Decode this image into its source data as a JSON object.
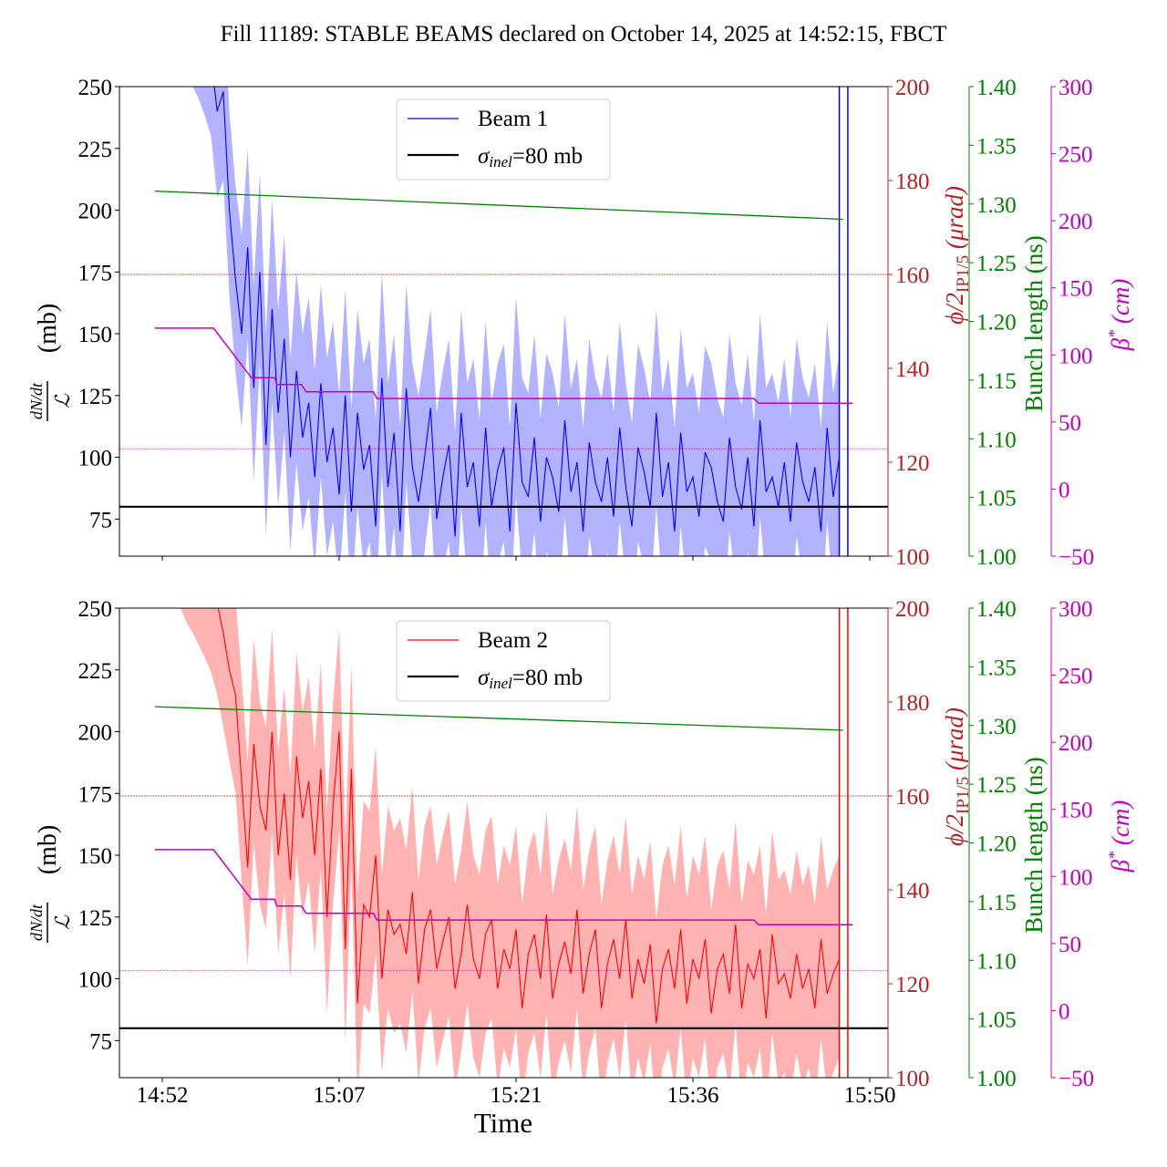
{
  "chart_data": {
    "title": "Fill 11189: STABLE BEAMS declared on October 14, 2025 at 14:52:15, FBCT",
    "xlabel": "Time",
    "x_unit": "minutes after 14:52:15",
    "x_ticks": [
      {
        "t": 0,
        "label": "14:52"
      },
      {
        "t": 14.5,
        "label": "15:07"
      },
      {
        "t": 29,
        "label": "15:21"
      },
      {
        "t": 43.5,
        "label": "15:36"
      },
      {
        "t": 58,
        "label": "15:50"
      }
    ],
    "xlim": [
      -3.5,
      59.5
    ],
    "left_axis": {
      "label_fraction_numerator": "dN/dt",
      "label_fraction_denominator": "ℒ",
      "label_unit": "(mb)",
      "ylim": [
        60,
        250
      ],
      "ticks": [
        "75",
        "100",
        "125",
        "150",
        "175",
        "200",
        "225",
        "250"
      ],
      "tick_values": [
        75,
        100,
        125,
        150,
        175,
        200,
        225,
        250
      ]
    },
    "right_axes": [
      {
        "name": "crossing-angle",
        "label_main": "ϕ/2",
        "label_sub": "IP1/5",
        "label_unit": " (μrad)",
        "color": "#b22222",
        "ylim": [
          100,
          200
        ],
        "ticks": [
          "100",
          "120",
          "140",
          "160",
          "180",
          "200"
        ],
        "tick_values": [
          100,
          120,
          140,
          160,
          180,
          200
        ]
      },
      {
        "name": "bunch-length",
        "label": "Bunch length (ns)",
        "color": "#008000",
        "ylim": [
          1.0,
          1.4
        ],
        "ticks": [
          "1.00",
          "1.05",
          "1.10",
          "1.15",
          "1.20",
          "1.25",
          "1.30",
          "1.35",
          "1.40"
        ],
        "tick_values": [
          1.0,
          1.05,
          1.1,
          1.15,
          1.2,
          1.25,
          1.3,
          1.35,
          1.4
        ]
      },
      {
        "name": "beta-star",
        "label_main": "β",
        "label_sup": "*",
        "label_unit": " (cm)",
        "color": "#c000c0",
        "ylim": [
          -50,
          300
        ],
        "ticks": [
          "−50",
          "0",
          "50",
          "100",
          "150",
          "200",
          "250",
          "300"
        ],
        "tick_values": [
          -50,
          0,
          50,
          100,
          150,
          200,
          250,
          300
        ]
      }
    ],
    "panels": [
      {
        "beam": "Beam 1",
        "color": "#0000ff",
        "band_color": "#aaaaff",
        "legend": [
          "Beam 1",
          "σinel=80 mb"
        ],
        "legend_sigma_main": "σ",
        "legend_sigma_sub": "inel",
        "legend_sigma_rest": "=80 mb",
        "reference_line_mb": 80,
        "crossing_angle_urad": 160,
        "beta_star_ref_cm": 30,
        "bunch_length": {
          "t": [
            -0.6,
            55.8
          ],
          "ns": [
            1.311,
            1.287
          ]
        },
        "beta_star": {
          "t": [
            -0.6,
            4.2,
            7.3,
            9.2,
            9.4,
            11.4,
            11.8,
            17.3,
            17.6,
            48.5,
            48.9,
            56.6
          ],
          "cm": [
            120,
            120,
            83,
            83,
            78,
            78,
            72.5,
            72.5,
            67.5,
            67.5,
            64,
            64
          ]
        },
        "vertical_lines_t": [
          55.5,
          56.2
        ],
        "t": [
          -0.5,
          0,
          0.5,
          1,
          1.5,
          2,
          2.5,
          3,
          3.5,
          4,
          4.5,
          5,
          5.5,
          6,
          6.5,
          7,
          7.5,
          8,
          8.5,
          9,
          9.5,
          10,
          10.5,
          11,
          11.5,
          12,
          12.5,
          13,
          13.5,
          14,
          14.5,
          15,
          15.5,
          16,
          16.5,
          17,
          17.5,
          18,
          18.5,
          19,
          19.5,
          20,
          20.5,
          21,
          21.5,
          22,
          22.5,
          23,
          23.5,
          24,
          24.5,
          25,
          25.5,
          26,
          26.5,
          27,
          27.5,
          28,
          28.5,
          29,
          29.5,
          30,
          30.5,
          31,
          31.5,
          32,
          32.5,
          33,
          33.5,
          34,
          34.5,
          35,
          35.5,
          36,
          36.5,
          37,
          37.5,
          38,
          38.5,
          39,
          39.5,
          40,
          40.5,
          41,
          41.5,
          42,
          42.5,
          43,
          43.5,
          44,
          44.5,
          45,
          45.5,
          46,
          46.5,
          47,
          47.5,
          48,
          48.5,
          49,
          49.5,
          50,
          50.5,
          51,
          51.5,
          52,
          52.5,
          53,
          53.5,
          54,
          54.5,
          55,
          55.5
        ],
        "mean": [
          300,
          300,
          300,
          290,
          295,
          285,
          280,
          275,
          268,
          262,
          240,
          248,
          200,
          172,
          150,
          185,
          128,
          175,
          105,
          160,
          118,
          148,
          100,
          135,
          108,
          122,
          92,
          130,
          98,
          112,
          85,
          125,
          78,
          118,
          95,
          105,
          72,
          132,
          88,
          110,
          70,
          128,
          96,
          82,
          100,
          120,
          75,
          92,
          105,
          68,
          118,
          88,
          98,
          72,
          112,
          80,
          95,
          104,
          70,
          122,
          90,
          84,
          108,
          74,
          100,
          92,
          78,
          115,
          86,
          98,
          70,
          106,
          90,
          82,
          100,
          76,
          112,
          88,
          72,
          104,
          94,
          80,
          118,
          84,
          98,
          70,
          110,
          86,
          92,
          76,
          102,
          96,
          82,
          74,
          108,
          88,
          79,
          100,
          72,
          115,
          86,
          92,
          80,
          98,
          74,
          106,
          90,
          82,
          96,
          70,
          112,
          84,
          100
        ],
        "upper": [
          330,
          325,
          335,
          320,
          330,
          315,
          310,
          305,
          300,
          295,
          280,
          290,
          240,
          210,
          190,
          225,
          170,
          215,
          150,
          205,
          160,
          190,
          140,
          175,
          150,
          165,
          135,
          170,
          140,
          155,
          125,
          168,
          120,
          160,
          138,
          148,
          115,
          175,
          130,
          150,
          112,
          170,
          138,
          125,
          142,
          160,
          118,
          135,
          148,
          110,
          160,
          130,
          140,
          115,
          155,
          122,
          138,
          146,
          112,
          165,
          132,
          126,
          150,
          116,
          142,
          134,
          120,
          158,
          128,
          140,
          112,
          148,
          132,
          124,
          142,
          118,
          155,
          130,
          114,
          146,
          136,
          122,
          160,
          126,
          140,
          112,
          152,
          128,
          134,
          118,
          145,
          138,
          124,
          116,
          150,
          130,
          121,
          142,
          114,
          158,
          128,
          134,
          122,
          140,
          116,
          148,
          132,
          124,
          138,
          112,
          155,
          126,
          142
        ],
        "lower": [
          270,
          275,
          265,
          260,
          262,
          255,
          250,
          245,
          238,
          230,
          205,
          212,
          165,
          135,
          112,
          148,
          90,
          138,
          68,
          122,
          80,
          110,
          62,
          98,
          70,
          84,
          55,
          92,
          60,
          74,
          48,
          86,
          40,
          80,
          56,
          66,
          35,
          94,
          50,
          72,
          32,
          90,
          58,
          44,
          62,
          82,
          38,
          54,
          66,
          30,
          80,
          50,
          60,
          34,
          74,
          42,
          57,
          66,
          32,
          84,
          52,
          46,
          70,
          36,
          62,
          54,
          40,
          76,
          48,
          60,
          32,
          68,
          52,
          44,
          62,
          38,
          74,
          50,
          34,
          66,
          56,
          42,
          80,
          46,
          60,
          32,
          72,
          48,
          54,
          38,
          64,
          58,
          44,
          36,
          70,
          50,
          41,
          62,
          34,
          76,
          48,
          54,
          42,
          60,
          36,
          68,
          52,
          44,
          58,
          32,
          74,
          46,
          62
        ]
      },
      {
        "beam": "Beam 2",
        "color": "#ff0000",
        "band_color": "#ffaaaa",
        "legend": [
          "Beam 2",
          "σinel=80 mb"
        ],
        "legend_sigma_main": "σ",
        "legend_sigma_sub": "inel",
        "legend_sigma_rest": "=80 mb",
        "reference_line_mb": 80,
        "crossing_angle_urad": 160,
        "beta_star_ref_cm": 30,
        "bunch_length": {
          "t": [
            -0.6,
            55.8
          ],
          "ns": [
            1.316,
            1.296
          ]
        },
        "beta_star": {
          "t": [
            -0.6,
            4.2,
            7.3,
            9.2,
            9.4,
            11.4,
            11.8,
            17.3,
            17.6,
            48.5,
            48.9,
            56.6
          ],
          "cm": [
            120,
            120,
            83,
            83,
            78,
            78,
            72.5,
            72.5,
            67.5,
            67.5,
            64,
            64
          ]
        },
        "vertical_lines_t": [
          55.5,
          56.2
        ],
        "t": [
          -0.5,
          0,
          0.5,
          1,
          1.5,
          2,
          2.5,
          3,
          3.5,
          4,
          4.5,
          5,
          5.5,
          6,
          6.5,
          7,
          7.5,
          8,
          8.5,
          9,
          9.5,
          10,
          10.5,
          11,
          11.5,
          12,
          12.5,
          13,
          13.5,
          14,
          14.5,
          15,
          15.5,
          16,
          16.5,
          17,
          17.5,
          18,
          18.5,
          19,
          19.5,
          20,
          20.5,
          21,
          21.5,
          22,
          22.5,
          23,
          23.5,
          24,
          24.5,
          25,
          25.5,
          26,
          26.5,
          27,
          27.5,
          28,
          28.5,
          29,
          29.5,
          30,
          30.5,
          31,
          31.5,
          32,
          32.5,
          33,
          33.5,
          34,
          34.5,
          35,
          35.5,
          36,
          36.5,
          37,
          37.5,
          38,
          38.5,
          39,
          39.5,
          40,
          40.5,
          41,
          41.5,
          42,
          42.5,
          43,
          43.5,
          44,
          44.5,
          45,
          45.5,
          46,
          46.5,
          47,
          47.5,
          48,
          48.5,
          49,
          49.5,
          50,
          50.5,
          51,
          51.5,
          52,
          52.5,
          53,
          53.5,
          54,
          54.5,
          55,
          55.5
        ],
        "mean": [
          300,
          300,
          295,
          290,
          288,
          282,
          278,
          272,
          268,
          262,
          252,
          240,
          225,
          215,
          180,
          145,
          195,
          170,
          160,
          200,
          150,
          175,
          140,
          190,
          165,
          180,
          150,
          185,
          125,
          170,
          200,
          112,
          185,
          90,
          130,
          125,
          150,
          100,
          128,
          118,
          122,
          110,
          135,
          98,
          120,
          128,
          104,
          115,
          125,
          96,
          110,
          130,
          108,
          100,
          118,
          124,
          96,
          112,
          104,
          120,
          88,
          110,
          118,
          100,
          126,
          92,
          106,
          115,
          102,
          128,
          94,
          110,
          120,
          88,
          106,
          116,
          100,
          124,
          92,
          108,
          98,
          114,
          82,
          104,
          112,
          96,
          120,
          90,
          108,
          100,
          116,
          86,
          104,
          110,
          94,
          122,
          88,
          106,
          100,
          112,
          84,
          118,
          98,
          102,
          92,
          110,
          96,
          104,
          88,
          116,
          94,
          102,
          108
        ],
        "upper": [
          330,
          330,
          325,
          320,
          318,
          312,
          308,
          302,
          298,
          292,
          285,
          275,
          262,
          255,
          222,
          188,
          238,
          212,
          202,
          242,
          192,
          218,
          182,
          232,
          208,
          222,
          192,
          228,
          168,
          212,
          242,
          156,
          228,
          134,
          172,
          168,
          194,
          142,
          170,
          160,
          165,
          152,
          178,
          140,
          162,
          170,
          146,
          158,
          168,
          138,
          152,
          172,
          150,
          142,
          160,
          166,
          138,
          154,
          146,
          162,
          130,
          152,
          160,
          142,
          168,
          134,
          148,
          157,
          144,
          170,
          136,
          152,
          162,
          130,
          148,
          158,
          142,
          166,
          134,
          150,
          140,
          156,
          124,
          146,
          154,
          138,
          162,
          132,
          150,
          142,
          158,
          128,
          146,
          152,
          136,
          164,
          130,
          148,
          142,
          154,
          126,
          160,
          140,
          144,
          134,
          152,
          138,
          146,
          130,
          158,
          136,
          144,
          150
        ],
        "lower": [
          262,
          262,
          258,
          252,
          250,
          244,
          240,
          235,
          230,
          224,
          215,
          202,
          188,
          175,
          140,
          105,
          155,
          130,
          120,
          160,
          110,
          135,
          100,
          150,
          125,
          140,
          110,
          145,
          86,
          130,
          160,
          74,
          145,
          52,
          90,
          86,
          110,
          62,
          88,
          78,
          82,
          70,
          95,
          58,
          80,
          88,
          64,
          75,
          85,
          56,
          70,
          90,
          68,
          60,
          78,
          84,
          56,
          72,
          64,
          80,
          48,
          70,
          78,
          60,
          86,
          52,
          66,
          75,
          62,
          88,
          54,
          70,
          80,
          48,
          66,
          76,
          60,
          84,
          52,
          68,
          58,
          74,
          42,
          64,
          72,
          56,
          80,
          50,
          68,
          60,
          76,
          46,
          64,
          70,
          54,
          82,
          48,
          66,
          60,
          72,
          44,
          78,
          58,
          62,
          52,
          70,
          56,
          64,
          48,
          76,
          54,
          62,
          68
        ]
      }
    ]
  }
}
